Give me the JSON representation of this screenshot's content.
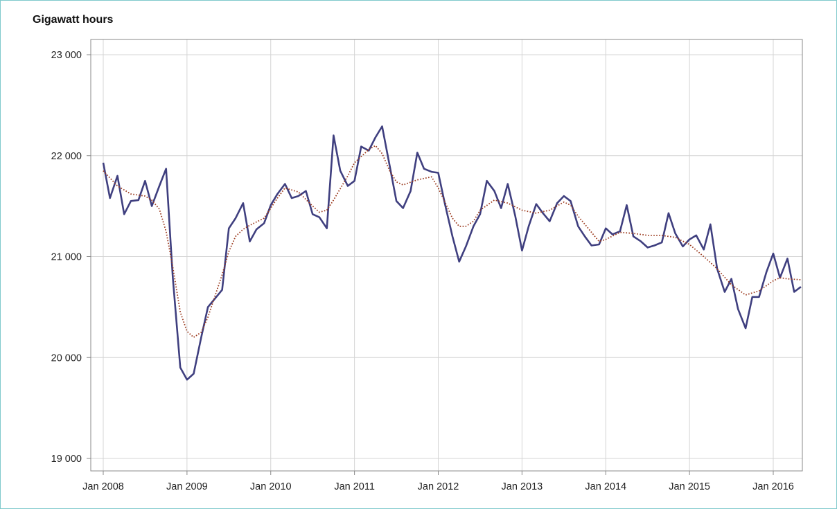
{
  "chart_data": {
    "type": "line",
    "ylabel": "Gigawatt hours",
    "ylim": [
      19000,
      23000
    ],
    "yticks": [
      {
        "value": 23000,
        "label": "23 000"
      },
      {
        "value": 22000,
        "label": "22 000"
      },
      {
        "value": 21000,
        "label": "21 000"
      },
      {
        "value": 20000,
        "label": "20 000"
      },
      {
        "value": 19000,
        "label": "19 000"
      }
    ],
    "xticks": [
      {
        "value": 2008,
        "label": "Jan 2008"
      },
      {
        "value": 2009,
        "label": "Jan 2009"
      },
      {
        "value": 2010,
        "label": "Jan 2010"
      },
      {
        "value": 2011,
        "label": "Jan 2011"
      },
      {
        "value": 2012,
        "label": "Jan 2012"
      },
      {
        "value": 2013,
        "label": "Jan 2013"
      },
      {
        "value": 2014,
        "label": "Jan 2014"
      },
      {
        "value": 2015,
        "label": "Jan 2015"
      },
      {
        "value": 2016,
        "label": "Jan 2016"
      }
    ],
    "grid": true,
    "colors": {
      "actual": "#3f3f7f",
      "trend": "#9b3a1e",
      "grid": "#d4d4d4",
      "axis": "#888888"
    },
    "series": [
      {
        "style": "solid",
        "points": [
          [
            2008.0,
            21930
          ],
          [
            2008.08,
            21580
          ],
          [
            2008.17,
            21800
          ],
          [
            2008.25,
            21420
          ],
          [
            2008.33,
            21550
          ],
          [
            2008.42,
            21560
          ],
          [
            2008.5,
            21750
          ],
          [
            2008.58,
            21500
          ],
          [
            2008.67,
            21700
          ],
          [
            2008.75,
            21870
          ],
          [
            2008.83,
            20800
          ],
          [
            2008.92,
            19900
          ],
          [
            2009.0,
            19780
          ],
          [
            2009.08,
            19840
          ],
          [
            2009.17,
            20200
          ],
          [
            2009.25,
            20500
          ],
          [
            2009.33,
            20580
          ],
          [
            2009.42,
            20670
          ],
          [
            2009.5,
            21280
          ],
          [
            2009.58,
            21380
          ],
          [
            2009.67,
            21530
          ],
          [
            2009.75,
            21150
          ],
          [
            2009.83,
            21270
          ],
          [
            2009.92,
            21330
          ],
          [
            2010.0,
            21510
          ],
          [
            2010.08,
            21620
          ],
          [
            2010.17,
            21720
          ],
          [
            2010.25,
            21580
          ],
          [
            2010.33,
            21600
          ],
          [
            2010.42,
            21650
          ],
          [
            2010.5,
            21420
          ],
          [
            2010.58,
            21390
          ],
          [
            2010.67,
            21280
          ],
          [
            2010.75,
            22200
          ],
          [
            2010.83,
            21850
          ],
          [
            2010.92,
            21700
          ],
          [
            2011.0,
            21750
          ],
          [
            2011.08,
            22090
          ],
          [
            2011.17,
            22050
          ],
          [
            2011.25,
            22180
          ],
          [
            2011.33,
            22290
          ],
          [
            2011.42,
            21900
          ],
          [
            2011.5,
            21550
          ],
          [
            2011.58,
            21480
          ],
          [
            2011.67,
            21650
          ],
          [
            2011.75,
            22030
          ],
          [
            2011.83,
            21870
          ],
          [
            2011.92,
            21840
          ],
          [
            2012.0,
            21830
          ],
          [
            2012.08,
            21520
          ],
          [
            2012.17,
            21200
          ],
          [
            2012.25,
            20950
          ],
          [
            2012.33,
            21100
          ],
          [
            2012.42,
            21300
          ],
          [
            2012.5,
            21420
          ],
          [
            2012.58,
            21750
          ],
          [
            2012.67,
            21650
          ],
          [
            2012.75,
            21480
          ],
          [
            2012.83,
            21720
          ],
          [
            2012.92,
            21400
          ],
          [
            2013.0,
            21060
          ],
          [
            2013.08,
            21300
          ],
          [
            2013.17,
            21520
          ],
          [
            2013.25,
            21430
          ],
          [
            2013.33,
            21350
          ],
          [
            2013.42,
            21530
          ],
          [
            2013.5,
            21600
          ],
          [
            2013.58,
            21550
          ],
          [
            2013.67,
            21300
          ],
          [
            2013.75,
            21200
          ],
          [
            2013.83,
            21110
          ],
          [
            2013.92,
            21120
          ],
          [
            2014.0,
            21280
          ],
          [
            2014.08,
            21220
          ],
          [
            2014.17,
            21250
          ],
          [
            2014.25,
            21510
          ],
          [
            2014.33,
            21200
          ],
          [
            2014.42,
            21150
          ],
          [
            2014.5,
            21090
          ],
          [
            2014.58,
            21110
          ],
          [
            2014.67,
            21140
          ],
          [
            2014.75,
            21430
          ],
          [
            2014.83,
            21230
          ],
          [
            2014.92,
            21100
          ],
          [
            2015.0,
            21170
          ],
          [
            2015.08,
            21210
          ],
          [
            2015.17,
            21070
          ],
          [
            2015.25,
            21320
          ],
          [
            2015.33,
            20880
          ],
          [
            2015.42,
            20650
          ],
          [
            2015.5,
            20780
          ],
          [
            2015.58,
            20480
          ],
          [
            2015.67,
            20290
          ],
          [
            2015.75,
            20600
          ],
          [
            2015.83,
            20600
          ],
          [
            2015.92,
            20850
          ],
          [
            2016.0,
            21030
          ],
          [
            2016.08,
            20790
          ],
          [
            2016.17,
            20980
          ],
          [
            2016.25,
            20650
          ],
          [
            2016.33,
            20700
          ]
        ]
      },
      {
        "style": "dotted",
        "points": [
          [
            2008.0,
            21850
          ],
          [
            2008.17,
            21700
          ],
          [
            2008.33,
            21620
          ],
          [
            2008.5,
            21600
          ],
          [
            2008.58,
            21560
          ],
          [
            2008.67,
            21470
          ],
          [
            2008.75,
            21250
          ],
          [
            2008.83,
            20900
          ],
          [
            2008.92,
            20450
          ],
          [
            2009.0,
            20260
          ],
          [
            2009.08,
            20200
          ],
          [
            2009.17,
            20250
          ],
          [
            2009.25,
            20400
          ],
          [
            2009.33,
            20600
          ],
          [
            2009.42,
            20820
          ],
          [
            2009.5,
            21050
          ],
          [
            2009.58,
            21200
          ],
          [
            2009.67,
            21270
          ],
          [
            2009.75,
            21310
          ],
          [
            2009.92,
            21380
          ],
          [
            2010.0,
            21480
          ],
          [
            2010.08,
            21580
          ],
          [
            2010.17,
            21680
          ],
          [
            2010.33,
            21640
          ],
          [
            2010.5,
            21500
          ],
          [
            2010.58,
            21440
          ],
          [
            2010.67,
            21460
          ],
          [
            2010.75,
            21560
          ],
          [
            2010.92,
            21800
          ],
          [
            2011.0,
            21930
          ],
          [
            2011.17,
            22060
          ],
          [
            2011.25,
            22100
          ],
          [
            2011.33,
            22020
          ],
          [
            2011.42,
            21850
          ],
          [
            2011.5,
            21740
          ],
          [
            2011.58,
            21710
          ],
          [
            2011.75,
            21760
          ],
          [
            2011.92,
            21790
          ],
          [
            2012.0,
            21680
          ],
          [
            2012.08,
            21540
          ],
          [
            2012.17,
            21380
          ],
          [
            2012.25,
            21300
          ],
          [
            2012.33,
            21300
          ],
          [
            2012.42,
            21350
          ],
          [
            2012.5,
            21460
          ],
          [
            2012.67,
            21560
          ],
          [
            2012.83,
            21530
          ],
          [
            2013.0,
            21460
          ],
          [
            2013.17,
            21430
          ],
          [
            2013.33,
            21460
          ],
          [
            2013.5,
            21540
          ],
          [
            2013.58,
            21510
          ],
          [
            2013.67,
            21400
          ],
          [
            2013.83,
            21240
          ],
          [
            2013.92,
            21150
          ],
          [
            2014.0,
            21170
          ],
          [
            2014.17,
            21240
          ],
          [
            2014.33,
            21230
          ],
          [
            2014.5,
            21210
          ],
          [
            2014.67,
            21210
          ],
          [
            2014.83,
            21190
          ],
          [
            2015.0,
            21120
          ],
          [
            2015.17,
            21000
          ],
          [
            2015.33,
            20880
          ],
          [
            2015.5,
            20720
          ],
          [
            2015.67,
            20620
          ],
          [
            2015.83,
            20660
          ],
          [
            2016.0,
            20760
          ],
          [
            2016.08,
            20790
          ],
          [
            2016.17,
            20780
          ],
          [
            2016.33,
            20770
          ]
        ]
      }
    ]
  }
}
